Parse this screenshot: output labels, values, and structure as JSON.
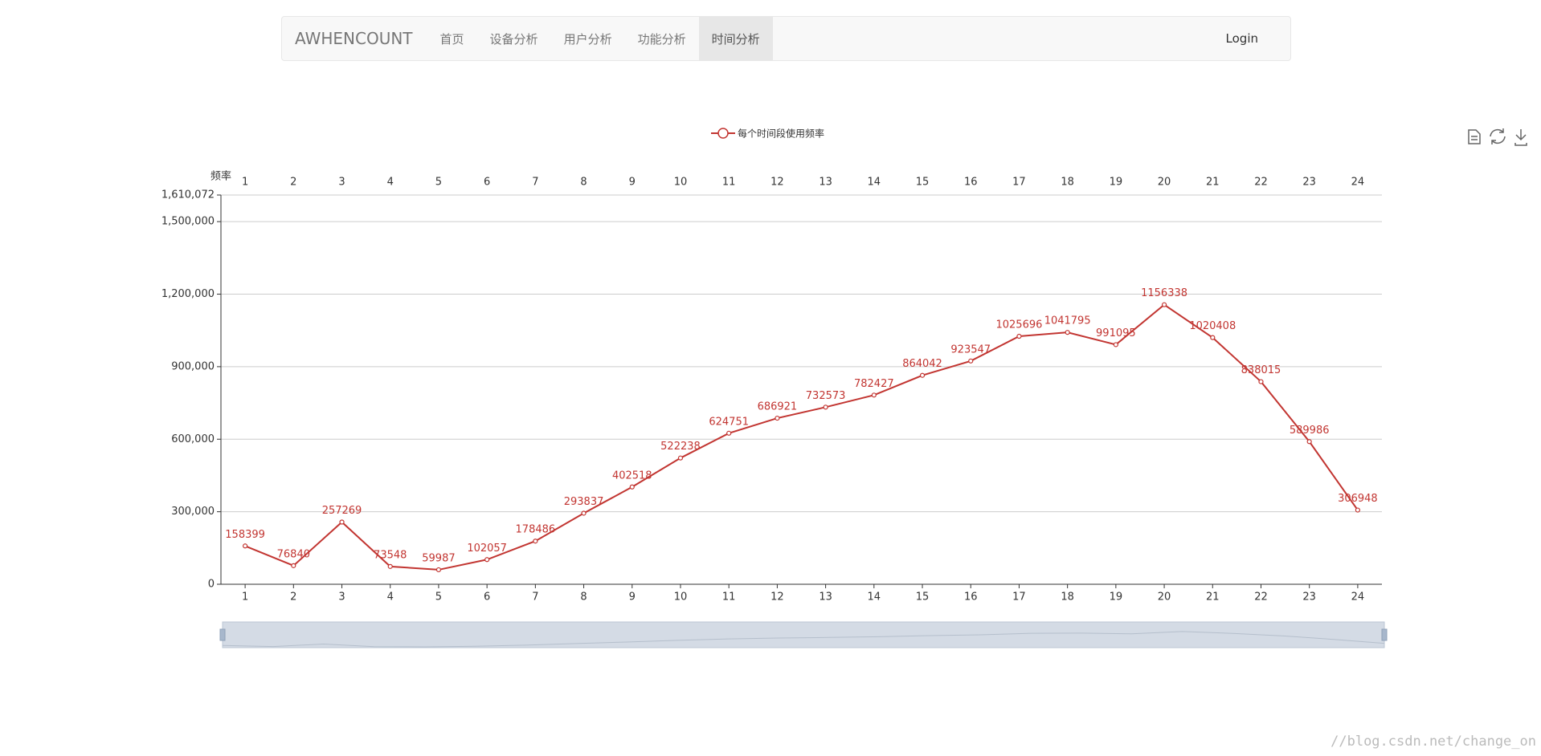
{
  "navbar": {
    "brand": "AWHENCOUNT",
    "items": [
      "首页",
      "设备分析",
      "用户分析",
      "功能分析",
      "时间分析"
    ],
    "active": 4,
    "login": "Login"
  },
  "chart_data": {
    "type": "line",
    "y_axis_label": "频率",
    "categories": [
      "1",
      "2",
      "3",
      "4",
      "5",
      "6",
      "7",
      "8",
      "9",
      "10",
      "11",
      "12",
      "13",
      "14",
      "15",
      "16",
      "17",
      "18",
      "19",
      "20",
      "21",
      "22",
      "23",
      "24"
    ],
    "series": [
      {
        "name": "每个时间段使用频率",
        "color": "#c23531",
        "values": [
          158399,
          76840,
          257269,
          73548,
          59987,
          102057,
          178486,
          293837,
          402518,
          522238,
          624751,
          686921,
          732573,
          782427,
          864042,
          923547,
          1025696,
          1041795,
          991095,
          1156338,
          1020408,
          838015,
          589986,
          306948
        ]
      }
    ],
    "ylim": [
      0,
      1610072
    ],
    "yticks": [
      0,
      {
        "value": 300000,
        "label": "300,000"
      },
      {
        "value": 600000,
        "label": "600,000"
      },
      {
        "value": 900000,
        "label": "900,000"
      },
      {
        "value": 1200000,
        "label": "1,200,000"
      },
      {
        "value": 1500000,
        "label": "1,500,000"
      },
      {
        "value": 1610072,
        "label": "1,610,072"
      }
    ],
    "grid": true
  },
  "watermark": "//blog.csdn.net/change_on"
}
